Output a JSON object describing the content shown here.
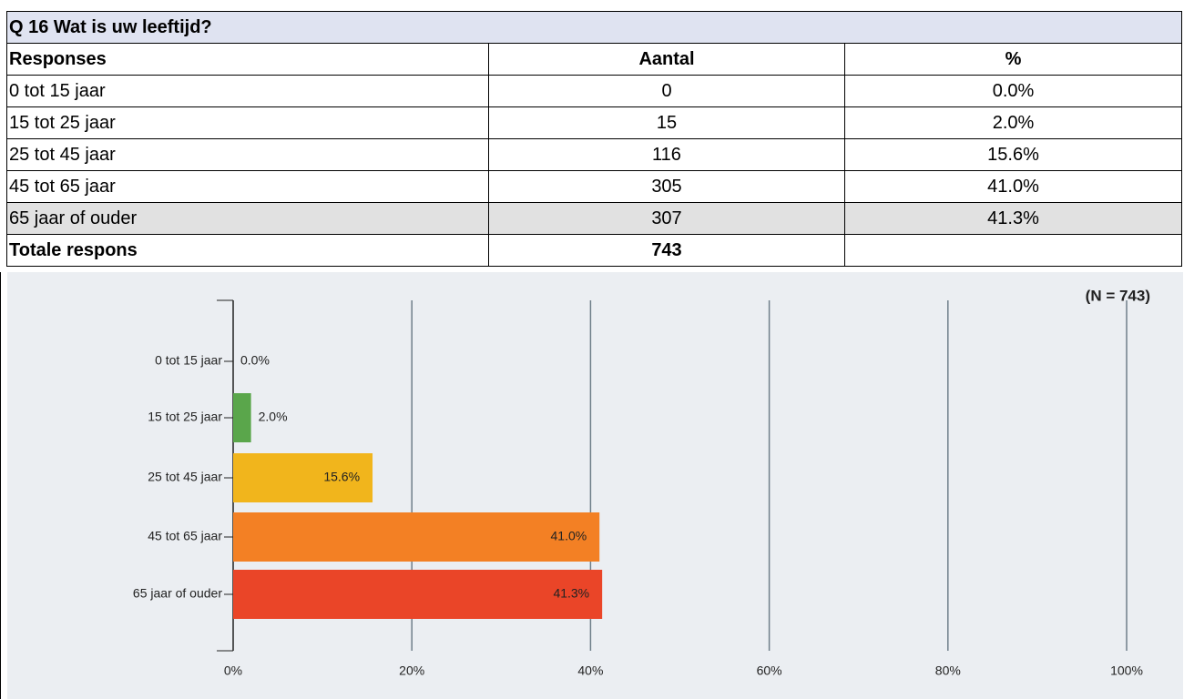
{
  "table": {
    "title": "Q 16 Wat is uw leeftijd?",
    "header": [
      "Responses",
      "Aantal",
      "%"
    ],
    "rows": [
      [
        "0 tot 15 jaar",
        0,
        "0.0%"
      ],
      [
        "15 tot 25 jaar",
        15,
        "2.0%"
      ],
      [
        "25 tot 45 jaar",
        116,
        "15.6%"
      ],
      [
        "45 tot 65 jaar",
        305,
        "41.0%"
      ],
      [
        "65 jaar of ouder",
        307,
        "41.3%"
      ]
    ],
    "total": [
      "Totale respons",
      743
    ]
  },
  "chart_data": {
    "type": "hbar",
    "annotation": "(N = 743)",
    "categories": [
      "0 tot 15 jaar",
      "15 tot 25 jaar",
      "25 tot 45 jaar",
      "45 tot 65 jaar",
      "65 jaar of ouder"
    ],
    "values": [
      0.0,
      2.0,
      15.6,
      41.0,
      41.3
    ],
    "value_labels": [
      "0.0%",
      "2.0%",
      "15.6%",
      "41.0%",
      "41.3%"
    ],
    "colors": [
      "#4a7fc1",
      "#5aa64b",
      "#f1b51c",
      "#f38024",
      "#ea4528"
    ],
    "xlim": [
      0,
      100
    ],
    "xticks": [
      {
        "value": 0,
        "label": "0%"
      },
      {
        "value": 20,
        "label": "20%"
      },
      {
        "value": 40,
        "label": "40%"
      },
      {
        "value": 60,
        "label": "60%"
      },
      {
        "value": 80,
        "label": "80%"
      },
      {
        "value": 100,
        "label": "100%"
      }
    ],
    "grid": true
  }
}
